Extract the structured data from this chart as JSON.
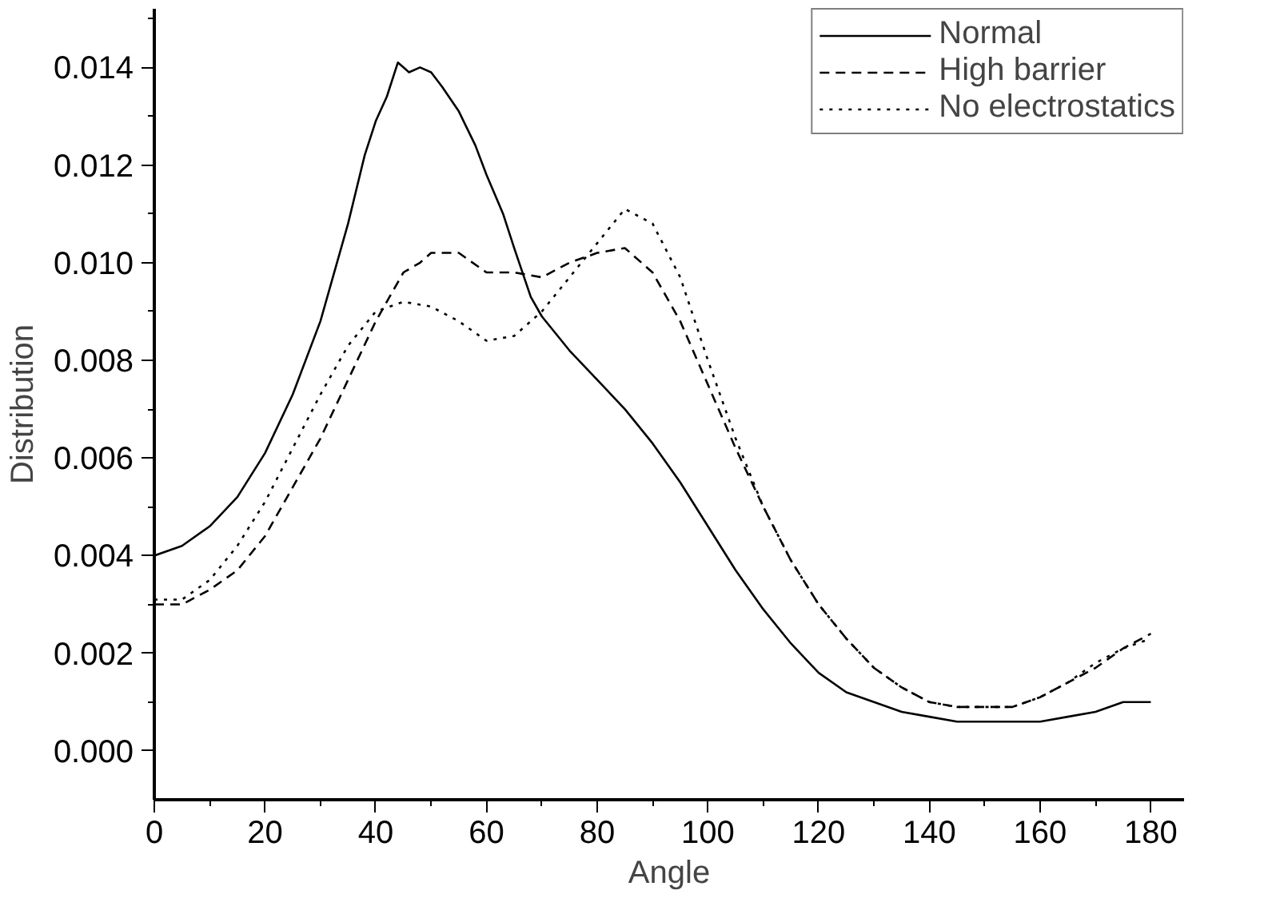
{
  "chart_data": {
    "type": "line",
    "xlabel": "Angle",
    "ylabel": "Distribution",
    "legend": "top right",
    "grid": false,
    "marker": "none",
    "xlim": [
      0,
      186
    ],
    "xticks": [
      0,
      20,
      40,
      60,
      80,
      100,
      120,
      140,
      160,
      180
    ],
    "ylim": [
      -0.001,
      0.0152
    ],
    "yticks": [
      {
        "value": 0,
        "label": "0.000"
      },
      {
        "value": 0.002,
        "label": "0.002"
      },
      {
        "value": 0.004,
        "label": "0.004"
      },
      {
        "value": 0.006,
        "label": "0.006"
      },
      {
        "value": 0.008,
        "label": "0.008"
      },
      {
        "value": 0.01,
        "label": "0.010"
      },
      {
        "value": 0.012,
        "label": "0.012"
      },
      {
        "value": 0.014,
        "label": "0.014"
      }
    ],
    "series": [
      {
        "name": "Normal",
        "color": "#000000",
        "line_style": "solid",
        "x": [
          0,
          5,
          10,
          15,
          20,
          25,
          30,
          35,
          38,
          40,
          42,
          44,
          46,
          48,
          50,
          52,
          55,
          58,
          60,
          63,
          65,
          68,
          70,
          75,
          80,
          85,
          90,
          95,
          100,
          105,
          110,
          115,
          120,
          125,
          130,
          135,
          140,
          145,
          150,
          155,
          160,
          165,
          170,
          175,
          180
        ],
        "values": [
          0.004,
          0.0042,
          0.0046,
          0.0052,
          0.0061,
          0.0073,
          0.0088,
          0.0108,
          0.0122,
          0.0129,
          0.0134,
          0.0141,
          0.0139,
          0.014,
          0.0139,
          0.0136,
          0.0131,
          0.0124,
          0.0118,
          0.011,
          0.0103,
          0.0093,
          0.0089,
          0.0082,
          0.0076,
          0.007,
          0.0063,
          0.0055,
          0.0046,
          0.0037,
          0.0029,
          0.0022,
          0.0016,
          0.0012,
          0.001,
          0.0008,
          0.0007,
          0.0006,
          0.0006,
          0.0006,
          0.0006,
          0.0007,
          0.0008,
          0.001,
          0.001
        ]
      },
      {
        "name": "High barrier",
        "color": "#000000",
        "line_style": "dashed",
        "x": [
          0,
          5,
          10,
          15,
          20,
          25,
          30,
          35,
          40,
          45,
          48,
          50,
          55,
          60,
          65,
          70,
          75,
          80,
          85,
          90,
          95,
          100,
          105,
          110,
          115,
          120,
          125,
          130,
          135,
          140,
          145,
          150,
          155,
          160,
          165,
          170,
          175,
          180
        ],
        "values": [
          0.003,
          0.003,
          0.0033,
          0.0037,
          0.0044,
          0.0054,
          0.0064,
          0.0076,
          0.0088,
          0.0098,
          0.01,
          0.0102,
          0.0102,
          0.0098,
          0.0098,
          0.0097,
          0.01,
          0.0102,
          0.0103,
          0.0098,
          0.0088,
          0.0075,
          0.0062,
          0.005,
          0.0039,
          0.003,
          0.0023,
          0.0017,
          0.0013,
          0.001,
          0.0009,
          0.0009,
          0.0009,
          0.0011,
          0.0014,
          0.0017,
          0.0021,
          0.0024
        ]
      },
      {
        "name": "No electrostatics",
        "color": "#000000",
        "line_style": "dotted",
        "x": [
          0,
          5,
          10,
          15,
          20,
          25,
          30,
          35,
          40,
          45,
          50,
          55,
          60,
          65,
          70,
          75,
          80,
          85,
          90,
          95,
          100,
          105,
          110,
          115,
          120,
          125,
          130,
          135,
          140,
          145,
          150,
          155,
          160,
          165,
          170,
          175,
          180
        ],
        "values": [
          0.0031,
          0.0031,
          0.0035,
          0.0042,
          0.0051,
          0.0062,
          0.0073,
          0.0083,
          0.009,
          0.0092,
          0.0091,
          0.0088,
          0.0084,
          0.0085,
          0.009,
          0.0097,
          0.0104,
          0.0111,
          0.0108,
          0.0097,
          0.008,
          0.0064,
          0.005,
          0.0039,
          0.003,
          0.0023,
          0.0017,
          0.0013,
          0.001,
          0.0009,
          0.0009,
          0.0009,
          0.0011,
          0.0014,
          0.0018,
          0.0021,
          0.0023
        ]
      }
    ]
  }
}
